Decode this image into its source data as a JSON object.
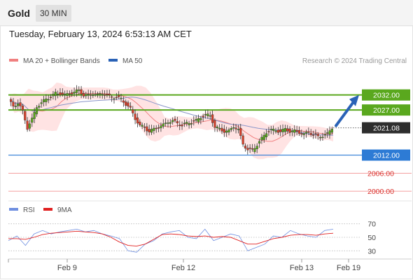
{
  "header": {
    "title": "Gold",
    "timeframe": "30 MIN"
  },
  "datetime": "Tuesday, February 13, 2024 6:53:13 AM CET",
  "legend": {
    "ma20_label": "MA 20 + Bollinger Bands",
    "ma50_label": "MA 50",
    "credit": "Research © 2024 Trading Central"
  },
  "rsi_legend": {
    "rsi_label": "RSI",
    "ma_label": "9MA"
  },
  "colors": {
    "green": "#5aa81e",
    "blue_level": "#2d7bd5",
    "red_level": "#f08080",
    "ma20": "#f08080",
    "ma50": "#8b96c9",
    "band_fill": "#ffe3e3",
    "candle_up": "#5aa81e",
    "candle_down": "#d9412b",
    "arrow": "#2a62b6",
    "current_tag": "#2d2d2d",
    "rsi": "#6f8fe0",
    "rsi_ma": "#e02020"
  },
  "chart_data": {
    "type": "candlestick",
    "ylim": [
      1997,
      2041
    ],
    "levels": [
      {
        "value": 2032.0,
        "label": "2032.00",
        "kind": "resistance",
        "style": "green"
      },
      {
        "value": 2027.0,
        "label": "2027.00",
        "kind": "resistance",
        "style": "green"
      },
      {
        "value": 2021.08,
        "label": "2021.08",
        "kind": "current",
        "style": "dark"
      },
      {
        "value": 2012.0,
        "label": "2012.00",
        "kind": "pivot",
        "style": "blue"
      },
      {
        "value": 2006.0,
        "label": "2006.00",
        "kind": "support",
        "style": "red"
      },
      {
        "value": 2000.0,
        "label": "2000.00",
        "kind": "support",
        "style": "red"
      }
    ],
    "price_series": [
      2030.5,
      2028.0,
      2029.5,
      2026.5,
      2021.0,
      2024.0,
      2028.0,
      2029.5,
      2030.5,
      2031.5,
      2032.5,
      2032.5,
      2032.0,
      2032.5,
      2033.0,
      2033.5,
      2032.0,
      2031.8,
      2032.5,
      2032.0,
      2032.5,
      2032.0,
      2031.0,
      2031.5,
      2030.5,
      2029.0,
      2027.5,
      2024.0,
      2022.0,
      2021.0,
      2020.0,
      2020.5,
      2021.5,
      2022.0,
      2023.0,
      2023.5,
      2022.5,
      2022.0,
      2022.5,
      2023.0,
      2023.5,
      2024.5,
      2025.5,
      2025.0,
      2021.5,
      2020.5,
      2020.0,
      2020.0,
      2021.5,
      2020.5,
      2015.5,
      2014.0,
      2013.5,
      2015.5,
      2017.5,
      2019.5,
      2020.5,
      2020.0,
      2020.0,
      2020.5,
      2020.0,
      2020.0,
      2019.5,
      2019.0,
      2019.5,
      2019.0,
      2018.0,
      2018.5,
      2019.0,
      2021.08
    ],
    "projection": {
      "from": 2021.08,
      "to": 2032.0,
      "direction": "up"
    },
    "x_ticks": [
      "Feb 9",
      "Feb 12",
      "Feb 13",
      "Feb 19"
    ]
  },
  "rsi_data": {
    "ylim": [
      20,
      80
    ],
    "levels": [
      70,
      50,
      30
    ],
    "level_labels": [
      "70",
      "50",
      "30"
    ],
    "rsi": [
      45,
      52,
      38,
      55,
      60,
      55,
      58,
      60,
      62,
      58,
      60,
      55,
      52,
      48,
      30,
      28,
      40,
      45,
      55,
      58,
      60,
      50,
      48,
      62,
      45,
      50,
      55,
      52,
      30,
      35,
      40,
      52,
      50,
      60,
      55,
      52,
      50,
      60,
      62
    ],
    "rsi_ma": [
      48,
      48,
      47,
      50,
      54,
      56,
      57,
      58,
      59,
      58,
      57,
      55,
      50,
      43,
      38,
      37,
      40,
      47,
      54,
      55,
      54,
      52,
      51,
      52,
      50,
      51,
      50,
      45,
      40,
      40,
      44,
      48,
      50,
      53,
      54,
      54,
      53,
      55,
      56
    ]
  }
}
